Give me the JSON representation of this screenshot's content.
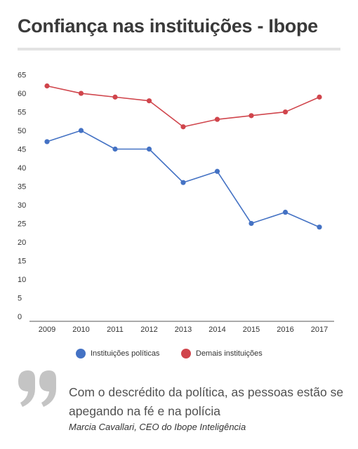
{
  "header": {
    "title": "Confiança nas instituições - Ibope"
  },
  "chart_data": {
    "type": "line",
    "title": "Confiança nas instituições - Ibope",
    "xlabel": "",
    "ylabel": "",
    "categories": [
      "2009",
      "2010",
      "2011",
      "2012",
      "2013",
      "2014",
      "2015",
      "2016",
      "2017"
    ],
    "yticks": [
      0,
      5,
      10,
      15,
      20,
      25,
      30,
      35,
      40,
      45,
      50,
      55,
      60,
      65
    ],
    "ylim": [
      0,
      65
    ],
    "grid": false,
    "legend_position": "bottom",
    "series": [
      {
        "name": "Instituições políticas",
        "color": "#4472c4",
        "values": [
          47,
          50,
          45,
          45,
          36,
          39,
          25,
          28,
          24
        ]
      },
      {
        "name": "Demais instituições",
        "color": "#d0454c",
        "values": [
          62,
          60,
          59,
          58,
          51,
          53,
          54,
          55,
          59
        ]
      }
    ]
  },
  "legend": {
    "items": [
      {
        "label": "Instituições políticas",
        "color": "#4472c4"
      },
      {
        "label": "Demais instituições",
        "color": "#d0454c"
      }
    ]
  },
  "quote": {
    "icon": "quote-icon",
    "text": "Com o descrédito da política, as pessoas estão se apegando na fé e na polícia",
    "author": "Marcia Cavallari, CEO do Ibope Inteligência"
  }
}
